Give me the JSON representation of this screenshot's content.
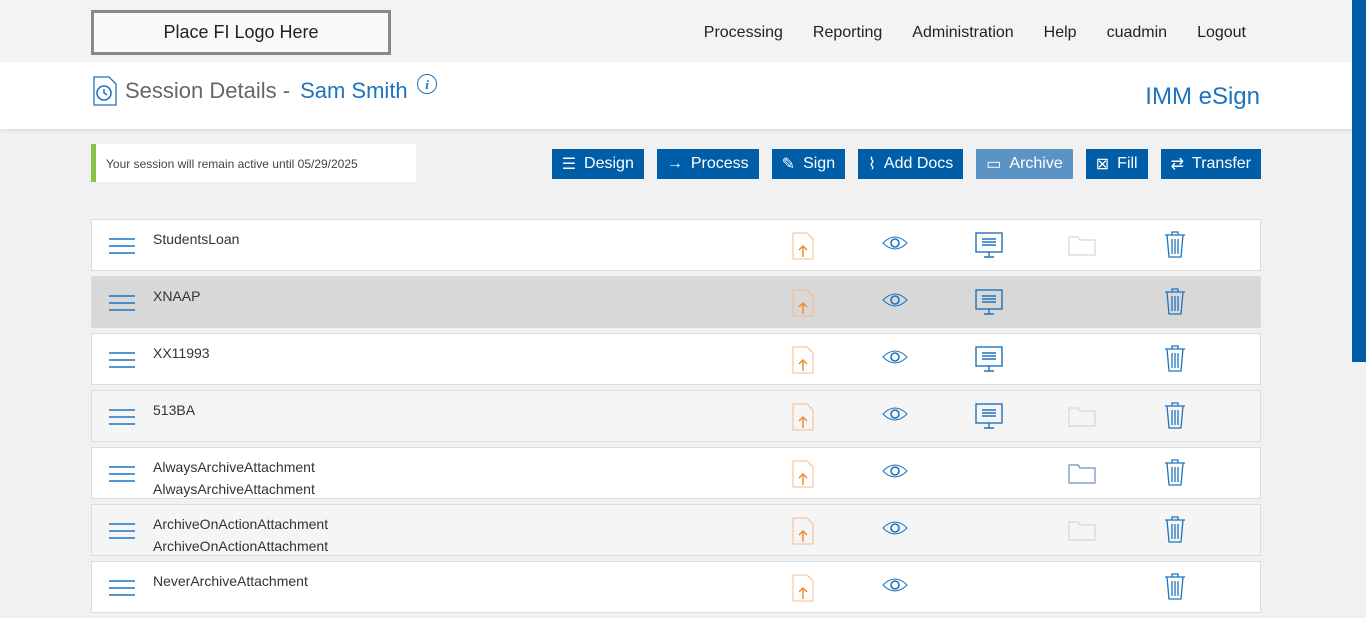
{
  "header": {
    "logo": "Place FI Logo Here",
    "nav": [
      "Processing",
      "Reporting",
      "Administration",
      "Help",
      "cuadmin",
      "Logout"
    ]
  },
  "page": {
    "title": "Session Details -",
    "name": "Sam Smith",
    "brand": "IMM eSign",
    "notice": "Your session will remain active until 05/29/2025"
  },
  "toolbar": [
    {
      "label": "Design",
      "icon": "list-doc-icon"
    },
    {
      "label": "Process",
      "icon": "arrow-right-icon"
    },
    {
      "label": "Sign",
      "icon": "pen-icon"
    },
    {
      "label": "Add Docs",
      "icon": "paperclip-icon"
    },
    {
      "label": "Archive",
      "icon": "folder-icon",
      "disabled": true
    },
    {
      "label": "Fill",
      "icon": "fill-doc-icon"
    },
    {
      "label": "Transfer",
      "icon": "transfer-icon"
    }
  ],
  "documents": [
    {
      "lines": [
        "StudentsLoan"
      ],
      "monitor": true,
      "folder": "faded"
    },
    {
      "lines": [
        "XNAAP"
      ],
      "monitor": true,
      "folder": "faded"
    },
    {
      "lines": [
        "XX11993"
      ],
      "monitor": true,
      "folder": "none"
    },
    {
      "lines": [
        "513BA"
      ],
      "monitor": true,
      "folder": "faded"
    },
    {
      "lines": [
        "AlwaysArchiveAttachment",
        "AlwaysArchiveAttachment"
      ],
      "monitor": false,
      "folder": "active"
    },
    {
      "lines": [
        "ArchiveOnActionAttachment",
        "ArchiveOnActionAttachment"
      ],
      "monitor": false,
      "folder": "faded"
    },
    {
      "lines": [
        "NeverArchiveAttachment"
      ],
      "monitor": false,
      "folder": "none"
    }
  ]
}
